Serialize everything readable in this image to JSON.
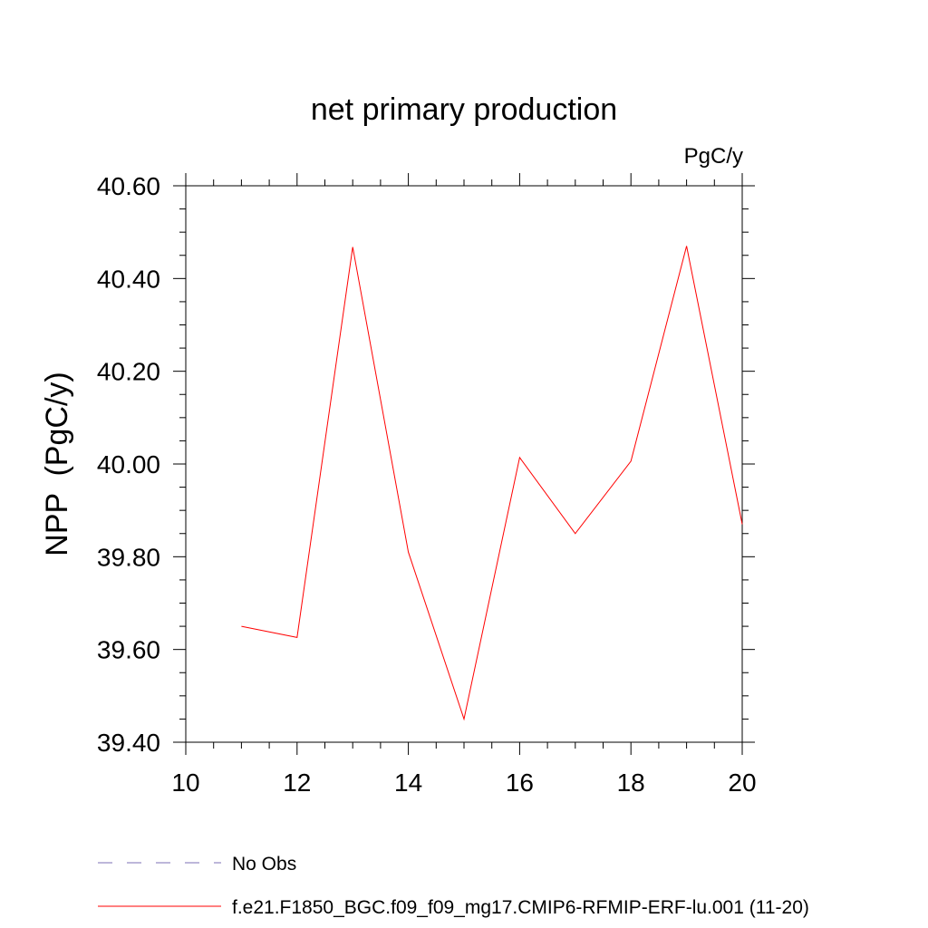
{
  "chart_data": {
    "type": "line",
    "title": "net primary production",
    "units": "PgC/y",
    "ylabel": "NPP  (PgC/y)",
    "xlabel": "",
    "xlim": [
      10,
      20
    ],
    "ylim": [
      39.4,
      40.6
    ],
    "xticks": [
      10,
      12,
      14,
      16,
      18,
      20
    ],
    "yticks": [
      39.4,
      39.6,
      39.8,
      40.0,
      40.2,
      40.4,
      40.6
    ],
    "ytick_labels": [
      "39.40",
      "39.60",
      "39.80",
      "40.00",
      "40.20",
      "40.40",
      "40.60"
    ],
    "x": [
      11,
      12,
      13,
      14,
      15,
      16,
      17,
      18,
      19,
      20
    ],
    "series": [
      {
        "name": "f.e21.F1850_BGC.f09_f09_mg17.CMIP6-RFMIP-ERF-lu.001 (11-20)",
        "color": "#ff0000",
        "values": [
          39.65,
          39.626,
          40.468,
          39.81,
          39.45,
          40.014,
          39.85,
          40.006,
          40.47,
          39.87
        ]
      }
    ],
    "legend": {
      "placement": "bottom-left",
      "entries": [
        {
          "label": "No Obs",
          "color": "#7b6fb5",
          "style": "dashed"
        },
        {
          "label": "f.e21.F1850_BGC.f09_f09_mg17.CMIP6-RFMIP-ERF-lu.001 (11-20)",
          "color": "#ff0000",
          "style": "solid"
        }
      ]
    },
    "grid": false
  }
}
